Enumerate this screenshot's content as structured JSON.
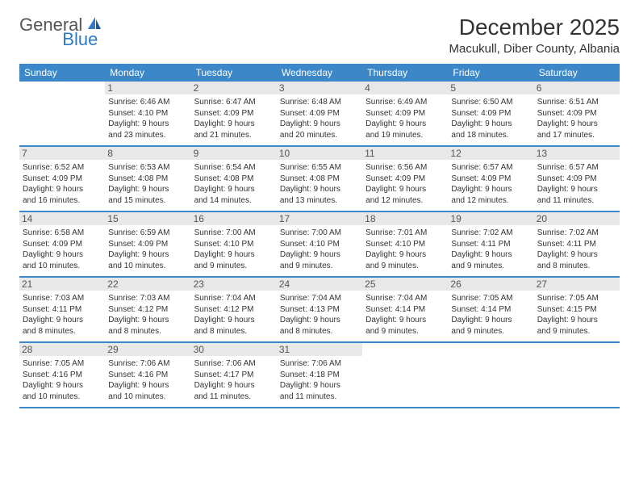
{
  "logo": {
    "part1": "General",
    "part2": "Blue"
  },
  "title": "December 2025",
  "location": "Macukull, Diber County, Albania",
  "colors": {
    "header_bg": "#3b87c8",
    "header_text": "#ffffff",
    "daynum_bg": "#e8e8e8",
    "border": "#3b87c8",
    "logo_gray": "#555555",
    "logo_blue": "#2f7ac0"
  },
  "day_names": [
    "Sunday",
    "Monday",
    "Tuesday",
    "Wednesday",
    "Thursday",
    "Friday",
    "Saturday"
  ],
  "weeks": [
    [
      {
        "n": "",
        "sr": "",
        "ss": "",
        "d1": "",
        "d2": ""
      },
      {
        "n": "1",
        "sr": "Sunrise: 6:46 AM",
        "ss": "Sunset: 4:10 PM",
        "d1": "Daylight: 9 hours",
        "d2": "and 23 minutes."
      },
      {
        "n": "2",
        "sr": "Sunrise: 6:47 AM",
        "ss": "Sunset: 4:09 PM",
        "d1": "Daylight: 9 hours",
        "d2": "and 21 minutes."
      },
      {
        "n": "3",
        "sr": "Sunrise: 6:48 AM",
        "ss": "Sunset: 4:09 PM",
        "d1": "Daylight: 9 hours",
        "d2": "and 20 minutes."
      },
      {
        "n": "4",
        "sr": "Sunrise: 6:49 AM",
        "ss": "Sunset: 4:09 PM",
        "d1": "Daylight: 9 hours",
        "d2": "and 19 minutes."
      },
      {
        "n": "5",
        "sr": "Sunrise: 6:50 AM",
        "ss": "Sunset: 4:09 PM",
        "d1": "Daylight: 9 hours",
        "d2": "and 18 minutes."
      },
      {
        "n": "6",
        "sr": "Sunrise: 6:51 AM",
        "ss": "Sunset: 4:09 PM",
        "d1": "Daylight: 9 hours",
        "d2": "and 17 minutes."
      }
    ],
    [
      {
        "n": "7",
        "sr": "Sunrise: 6:52 AM",
        "ss": "Sunset: 4:09 PM",
        "d1": "Daylight: 9 hours",
        "d2": "and 16 minutes."
      },
      {
        "n": "8",
        "sr": "Sunrise: 6:53 AM",
        "ss": "Sunset: 4:08 PM",
        "d1": "Daylight: 9 hours",
        "d2": "and 15 minutes."
      },
      {
        "n": "9",
        "sr": "Sunrise: 6:54 AM",
        "ss": "Sunset: 4:08 PM",
        "d1": "Daylight: 9 hours",
        "d2": "and 14 minutes."
      },
      {
        "n": "10",
        "sr": "Sunrise: 6:55 AM",
        "ss": "Sunset: 4:08 PM",
        "d1": "Daylight: 9 hours",
        "d2": "and 13 minutes."
      },
      {
        "n": "11",
        "sr": "Sunrise: 6:56 AM",
        "ss": "Sunset: 4:09 PM",
        "d1": "Daylight: 9 hours",
        "d2": "and 12 minutes."
      },
      {
        "n": "12",
        "sr": "Sunrise: 6:57 AM",
        "ss": "Sunset: 4:09 PM",
        "d1": "Daylight: 9 hours",
        "d2": "and 12 minutes."
      },
      {
        "n": "13",
        "sr": "Sunrise: 6:57 AM",
        "ss": "Sunset: 4:09 PM",
        "d1": "Daylight: 9 hours",
        "d2": "and 11 minutes."
      }
    ],
    [
      {
        "n": "14",
        "sr": "Sunrise: 6:58 AM",
        "ss": "Sunset: 4:09 PM",
        "d1": "Daylight: 9 hours",
        "d2": "and 10 minutes."
      },
      {
        "n": "15",
        "sr": "Sunrise: 6:59 AM",
        "ss": "Sunset: 4:09 PM",
        "d1": "Daylight: 9 hours",
        "d2": "and 10 minutes."
      },
      {
        "n": "16",
        "sr": "Sunrise: 7:00 AM",
        "ss": "Sunset: 4:10 PM",
        "d1": "Daylight: 9 hours",
        "d2": "and 9 minutes."
      },
      {
        "n": "17",
        "sr": "Sunrise: 7:00 AM",
        "ss": "Sunset: 4:10 PM",
        "d1": "Daylight: 9 hours",
        "d2": "and 9 minutes."
      },
      {
        "n": "18",
        "sr": "Sunrise: 7:01 AM",
        "ss": "Sunset: 4:10 PM",
        "d1": "Daylight: 9 hours",
        "d2": "and 9 minutes."
      },
      {
        "n": "19",
        "sr": "Sunrise: 7:02 AM",
        "ss": "Sunset: 4:11 PM",
        "d1": "Daylight: 9 hours",
        "d2": "and 9 minutes."
      },
      {
        "n": "20",
        "sr": "Sunrise: 7:02 AM",
        "ss": "Sunset: 4:11 PM",
        "d1": "Daylight: 9 hours",
        "d2": "and 8 minutes."
      }
    ],
    [
      {
        "n": "21",
        "sr": "Sunrise: 7:03 AM",
        "ss": "Sunset: 4:11 PM",
        "d1": "Daylight: 9 hours",
        "d2": "and 8 minutes."
      },
      {
        "n": "22",
        "sr": "Sunrise: 7:03 AM",
        "ss": "Sunset: 4:12 PM",
        "d1": "Daylight: 9 hours",
        "d2": "and 8 minutes."
      },
      {
        "n": "23",
        "sr": "Sunrise: 7:04 AM",
        "ss": "Sunset: 4:12 PM",
        "d1": "Daylight: 9 hours",
        "d2": "and 8 minutes."
      },
      {
        "n": "24",
        "sr": "Sunrise: 7:04 AM",
        "ss": "Sunset: 4:13 PM",
        "d1": "Daylight: 9 hours",
        "d2": "and 8 minutes."
      },
      {
        "n": "25",
        "sr": "Sunrise: 7:04 AM",
        "ss": "Sunset: 4:14 PM",
        "d1": "Daylight: 9 hours",
        "d2": "and 9 minutes."
      },
      {
        "n": "26",
        "sr": "Sunrise: 7:05 AM",
        "ss": "Sunset: 4:14 PM",
        "d1": "Daylight: 9 hours",
        "d2": "and 9 minutes."
      },
      {
        "n": "27",
        "sr": "Sunrise: 7:05 AM",
        "ss": "Sunset: 4:15 PM",
        "d1": "Daylight: 9 hours",
        "d2": "and 9 minutes."
      }
    ],
    [
      {
        "n": "28",
        "sr": "Sunrise: 7:05 AM",
        "ss": "Sunset: 4:16 PM",
        "d1": "Daylight: 9 hours",
        "d2": "and 10 minutes."
      },
      {
        "n": "29",
        "sr": "Sunrise: 7:06 AM",
        "ss": "Sunset: 4:16 PM",
        "d1": "Daylight: 9 hours",
        "d2": "and 10 minutes."
      },
      {
        "n": "30",
        "sr": "Sunrise: 7:06 AM",
        "ss": "Sunset: 4:17 PM",
        "d1": "Daylight: 9 hours",
        "d2": "and 11 minutes."
      },
      {
        "n": "31",
        "sr": "Sunrise: 7:06 AM",
        "ss": "Sunset: 4:18 PM",
        "d1": "Daylight: 9 hours",
        "d2": "and 11 minutes."
      },
      {
        "n": "",
        "sr": "",
        "ss": "",
        "d1": "",
        "d2": ""
      },
      {
        "n": "",
        "sr": "",
        "ss": "",
        "d1": "",
        "d2": ""
      },
      {
        "n": "",
        "sr": "",
        "ss": "",
        "d1": "",
        "d2": ""
      }
    ]
  ]
}
